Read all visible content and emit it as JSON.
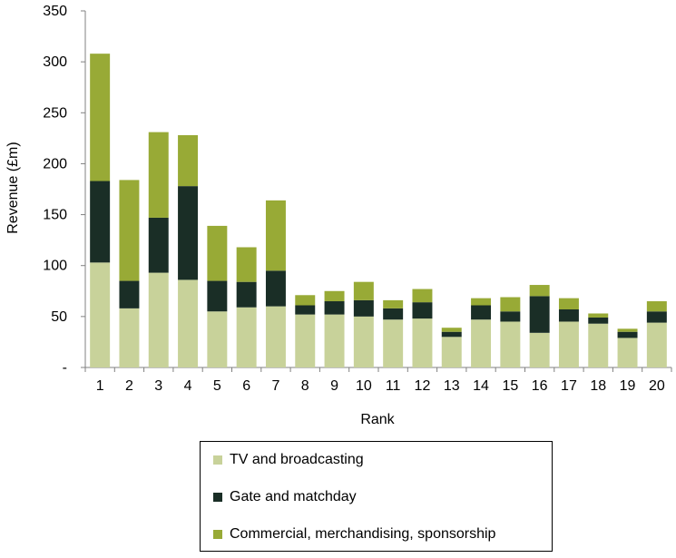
{
  "chart_data": {
    "type": "bar",
    "stacked": true,
    "xlabel": "Rank",
    "ylabel": "Revenue (£m)",
    "ylim": [
      0,
      350
    ],
    "yticks": [
      "-",
      "50",
      "100",
      "150",
      "200",
      "250",
      "300",
      "350"
    ],
    "categories": [
      "1",
      "2",
      "3",
      "4",
      "5",
      "6",
      "7",
      "8",
      "9",
      "10",
      "11",
      "12",
      "13",
      "14",
      "15",
      "16",
      "17",
      "18",
      "19",
      "20"
    ],
    "series": [
      {
        "name": "TV and broadcasting",
        "color": "#c8d29a",
        "values": [
          103,
          58,
          93,
          86,
          55,
          59,
          60,
          52,
          52,
          50,
          47,
          48,
          30,
          47,
          45,
          34,
          45,
          43,
          29,
          44
        ]
      },
      {
        "name": "Gate and matchday",
        "color": "#1a2e26",
        "values": [
          80,
          27,
          54,
          92,
          30,
          25,
          35,
          9,
          13,
          16,
          11,
          16,
          5,
          14,
          10,
          36,
          12,
          6,
          6,
          11
        ]
      },
      {
        "name": "Commercial, merchandising, sponsorship",
        "color": "#98aa36",
        "values": [
          125,
          99,
          84,
          50,
          54,
          34,
          69,
          10,
          10,
          18,
          8,
          13,
          4,
          7,
          14,
          11,
          11,
          4,
          3,
          10
        ]
      }
    ],
    "grid": false,
    "legend_position": "bottom"
  }
}
